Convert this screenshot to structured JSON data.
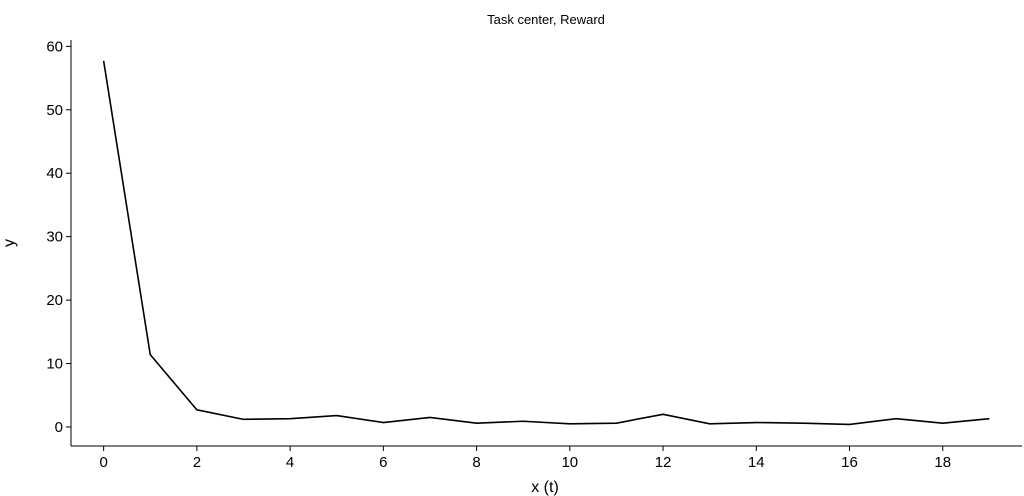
{
  "chart_data": {
    "type": "line",
    "title": "Task center, Reward",
    "xlabel": "x (t)",
    "ylabel": "y",
    "x": [
      0,
      1,
      2,
      3,
      4,
      5,
      6,
      7,
      8,
      9,
      10,
      11,
      12,
      13,
      14,
      15,
      16,
      17,
      18,
      19
    ],
    "series": [
      {
        "values": [
          57.7,
          11.4,
          2.7,
          1.2,
          1.3,
          1.8,
          0.7,
          1.5,
          0.6,
          0.9,
          0.5,
          0.6,
          2.0,
          0.5,
          0.7,
          0.6,
          0.4,
          1.3,
          0.6,
          1.3
        ],
        "color": "#000000"
      }
    ],
    "xlim": [
      -0.7,
      19.7
    ],
    "ylim": [
      -3,
      61
    ],
    "xticks": [
      0,
      2,
      4,
      6,
      8,
      10,
      12,
      14,
      16,
      18
    ],
    "yticks": [
      0,
      10,
      20,
      30,
      40,
      50,
      60
    ],
    "xtick_labels": [
      "0",
      "2",
      "4",
      "6",
      "8",
      "10",
      "12",
      "14",
      "16",
      "18"
    ],
    "ytick_labels": [
      "0",
      "10",
      "20",
      "30",
      "40",
      "50",
      "60"
    ],
    "grid": false,
    "legend": "none"
  }
}
